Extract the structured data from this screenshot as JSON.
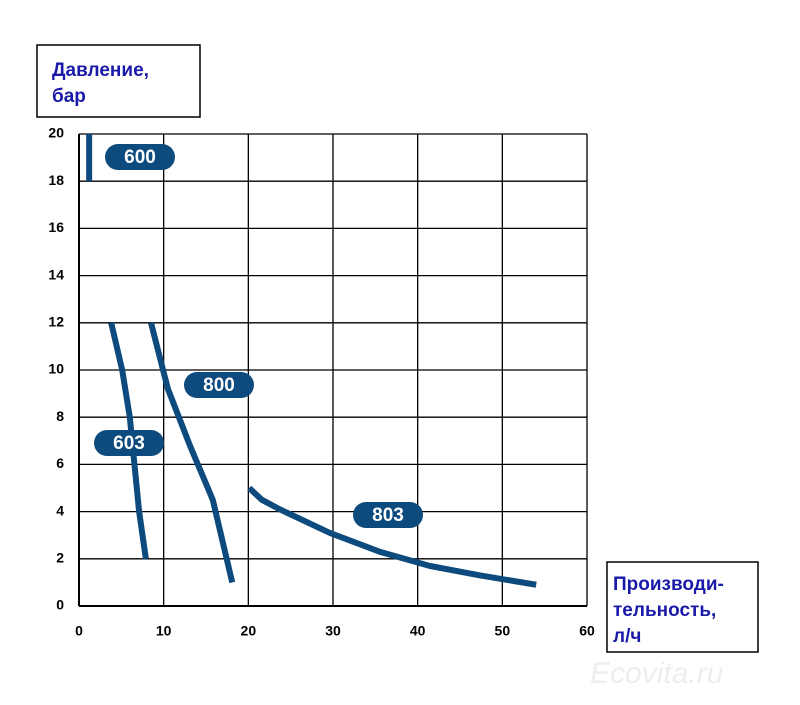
{
  "chart_data": {
    "type": "line",
    "y_label": [
      "Давление,",
      "бар"
    ],
    "x_label": [
      "Производи-",
      "тельность,",
      "л/ч"
    ],
    "watermark": "Ecovita.ru",
    "xlim": [
      0,
      60
    ],
    "xticks": [
      0,
      10,
      20,
      30,
      40,
      50,
      60
    ],
    "ylim": [
      0,
      20
    ],
    "yticks": [
      0,
      2,
      4,
      6,
      8,
      10,
      12,
      14,
      16,
      18,
      20
    ],
    "grid": true,
    "series": [
      {
        "name": "600",
        "color": "#0d4a7e",
        "x": [
          1.2,
          1.2
        ],
        "values": [
          18,
          20
        ]
      },
      {
        "name": "603",
        "color": "#0d4a7e",
        "x": [
          3.8,
          5.1,
          6.0,
          7.1,
          7.9
        ],
        "values": [
          12,
          10,
          8,
          4,
          2
        ]
      },
      {
        "name": "800",
        "color": "#0d4a7e",
        "x": [
          8.5,
          10.5,
          13.1,
          15.8,
          18.1
        ],
        "values": [
          12,
          9.2,
          6.8,
          4.5,
          1.0
        ]
      },
      {
        "name": "803",
        "color": "#0d4a7e",
        "x": [
          20.1,
          21.6,
          23.7,
          29.6,
          35.5,
          41.4,
          47.3,
          54
        ],
        "values": [
          5.0,
          4.5,
          4.1,
          3.1,
          2.3,
          1.7,
          1.3,
          0.9
        ]
      }
    ]
  }
}
